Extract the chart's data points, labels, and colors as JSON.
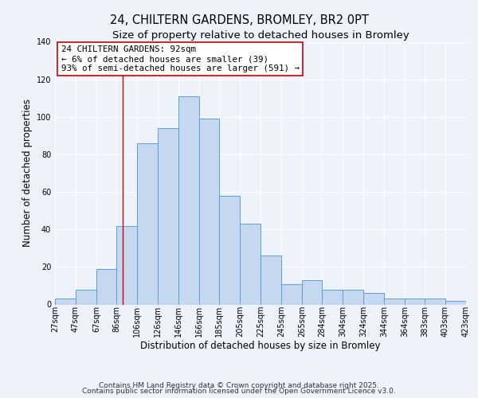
{
  "title": "24, CHILTERN GARDENS, BROMLEY, BR2 0PT",
  "subtitle": "Size of property relative to detached houses in Bromley",
  "xlabel": "Distribution of detached houses by size in Bromley",
  "ylabel": "Number of detached properties",
  "bin_labels": [
    "27sqm",
    "47sqm",
    "67sqm",
    "86sqm",
    "106sqm",
    "126sqm",
    "146sqm",
    "166sqm",
    "185sqm",
    "205sqm",
    "225sqm",
    "245sqm",
    "265sqm",
    "284sqm",
    "304sqm",
    "324sqm",
    "344sqm",
    "364sqm",
    "383sqm",
    "403sqm",
    "423sqm"
  ],
  "bar_values": [
    3,
    8,
    19,
    42,
    86,
    94,
    111,
    99,
    58,
    43,
    26,
    11,
    13,
    8,
    8,
    6,
    3,
    3,
    3,
    2
  ],
  "bar_color": "#c5d8f0",
  "bar_edge_color": "#5a9fd4",
  "property_line_x": 92,
  "bin_edges": [
    27,
    47,
    67,
    86,
    106,
    126,
    146,
    166,
    185,
    205,
    225,
    245,
    265,
    284,
    304,
    324,
    344,
    364,
    383,
    403,
    423
  ],
  "annotation_title": "24 CHILTERN GARDENS: 92sqm",
  "annotation_line1": "← 6% of detached houses are smaller (39)",
  "annotation_line2": "93% of semi-detached houses are larger (591) →",
  "annotation_box_color": "#ffffff",
  "annotation_box_edge": "#cc0000",
  "vline_color": "#cc0000",
  "ylim": [
    0,
    140
  ],
  "yticks": [
    0,
    20,
    40,
    60,
    80,
    100,
    120,
    140
  ],
  "footer1": "Contains HM Land Registry data © Crown copyright and database right 2025.",
  "footer2": "Contains public sector information licensed under the Open Government Licence v3.0.",
  "background_color": "#eef2fb",
  "grid_color": "#ffffff",
  "title_fontsize": 10.5,
  "subtitle_fontsize": 9.5,
  "axis_label_fontsize": 8.5,
  "tick_fontsize": 7,
  "annotation_fontsize": 7.8,
  "footer_fontsize": 6.5
}
